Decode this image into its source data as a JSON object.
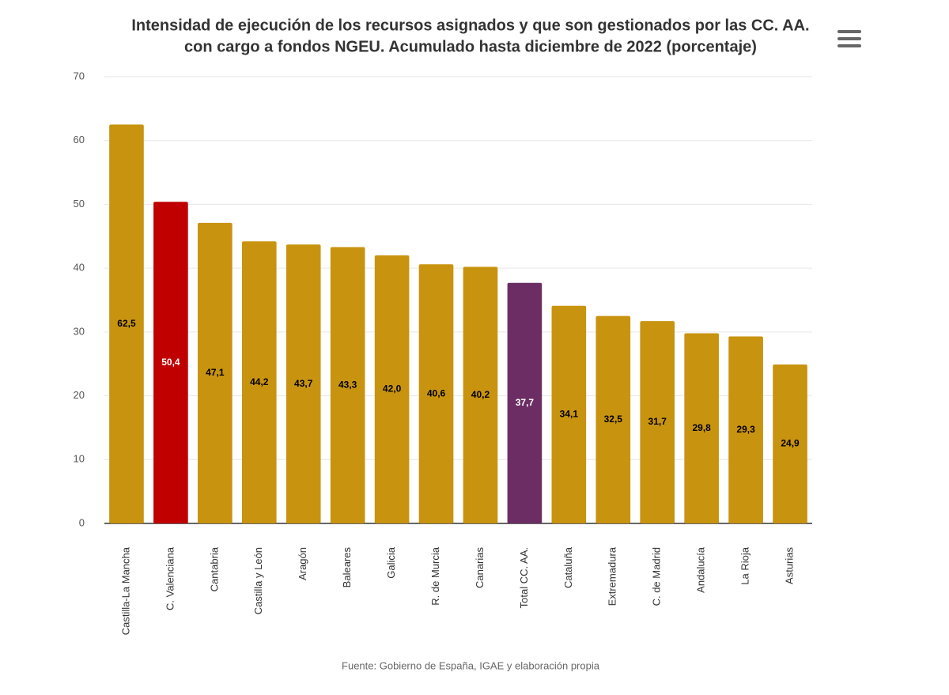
{
  "chart_data": {
    "type": "bar",
    "title": [
      "Intensidad de ejecución de los recursos asignados y que son gestionados por las CC. AA.",
      "con cargo a fondos NGEU. Acumulado hasta diciembre de 2022 (porcentaje)"
    ],
    "categories": [
      "Castilla-La Mancha",
      "C. Valenciana",
      "Cantabria",
      "Castilla y León",
      "Aragón",
      "Baleares",
      "Galicia",
      "R. de Murcia",
      "Canarias",
      "Total CC. AA.",
      "Cataluña",
      "Extremadura",
      "C. de Madrid",
      "Andalucía",
      "La Rioja",
      "Asturias"
    ],
    "values": [
      62.5,
      50.4,
      47.1,
      44.2,
      43.7,
      43.3,
      42.0,
      40.6,
      40.2,
      37.7,
      34.1,
      32.5,
      31.7,
      29.8,
      29.3,
      24.9
    ],
    "value_labels": [
      "62,5",
      "50,4",
      "47,1",
      "44,2",
      "43,7",
      "43,3",
      "42,0",
      "40,6",
      "40,2",
      "37,7",
      "34,1",
      "32,5",
      "31,7",
      "29,8",
      "29,3",
      "24,9"
    ],
    "colors": [
      "#c8930e",
      "#c00000",
      "#c8930e",
      "#c8930e",
      "#c8930e",
      "#c8930e",
      "#c8930e",
      "#c8930e",
      "#c8930e",
      "#6b2d63",
      "#c8930e",
      "#c8930e",
      "#c8930e",
      "#c8930e",
      "#c8930e",
      "#c8930e"
    ],
    "ylim": [
      0,
      70
    ],
    "yticks": [
      0,
      10,
      20,
      30,
      40,
      50,
      60,
      70
    ],
    "grid": true,
    "source": "Fuente: Gobierno de España, IGAE y elaboración propia"
  }
}
